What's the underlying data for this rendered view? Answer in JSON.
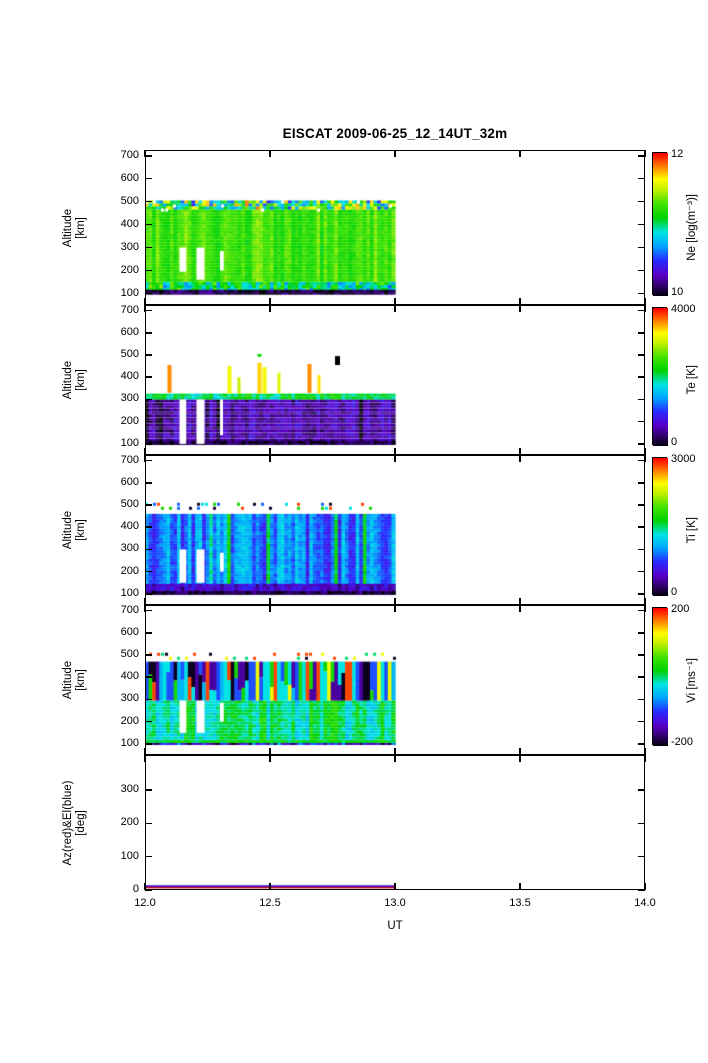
{
  "chart_data": {
    "type": "heatmap",
    "title": "EISCAT 2009-06-25_12_14UT_32m",
    "xlabel": "UT",
    "xlim": [
      12.0,
      14.0
    ],
    "xticks": [
      "12.0",
      "12.5",
      "13.0",
      "13.5",
      "14.0"
    ],
    "data_time_range": [
      12.0,
      13.0
    ],
    "legend": "none",
    "grid": false,
    "colormap": {
      "stops": [
        [
          0.0,
          "#000000"
        ],
        [
          0.05,
          "#20004a"
        ],
        [
          0.15,
          "#5a00c8"
        ],
        [
          0.25,
          "#2a2aff"
        ],
        [
          0.35,
          "#00a4ff"
        ],
        [
          0.45,
          "#00e4e4"
        ],
        [
          0.55,
          "#00d200"
        ],
        [
          0.65,
          "#44e400"
        ],
        [
          0.75,
          "#c8f000"
        ],
        [
          0.82,
          "#ffff00"
        ],
        [
          0.9,
          "#ff8c00"
        ],
        [
          1.0,
          "#ff0000"
        ]
      ]
    },
    "panels": [
      {
        "id": "ne",
        "quantity": "Ne",
        "ylabel_line1": "Altitude",
        "ylabel_line2": "[km]",
        "ylim": [
          50,
          725
        ],
        "yticks": [
          100,
          200,
          300,
          400,
          500,
          600,
          700
        ],
        "colorbar": {
          "label": "Ne [log(m⁻³)]",
          "tick_top": "12",
          "tick_bottom": "10",
          "clim": [
            10,
            12
          ]
        },
        "render": {
          "seed": 11,
          "columns": 70,
          "regions": [
            {
              "alt": [
                98,
                465
              ],
              "mean": 0.63,
              "jitter": 0.07,
              "rowNoise": 0.03
            },
            {
              "alt": [
                116,
                150
              ],
              "mean": 0.5,
              "jitter": 0.12,
              "rowNoise": 0.12
            },
            {
              "alt": [
                465,
                505
              ],
              "mean": 0.58,
              "jitter": 0.1,
              "rowNoise": 0.3
            },
            {
              "alt": [
                95,
                116
              ],
              "mean": 0.06,
              "jitter": 0.03,
              "rowNoise": 0.06
            }
          ],
          "speckles": [
            {
              "alt": [
                465,
                505
              ],
              "density": 0.12,
              "palette": [
                -1
              ],
              "cell": 4
            }
          ],
          "gaps": [
            {
              "t": [
                12.138,
                12.165
              ],
              "alt": [
                195,
                300
              ]
            },
            {
              "t": [
                12.206,
                12.238
              ],
              "alt": [
                160,
                300
              ]
            },
            {
              "t": [
                12.3,
                12.315
              ],
              "alt": [
                200,
                285
              ]
            }
          ]
        }
      },
      {
        "id": "te",
        "quantity": "Te",
        "ylabel_line1": "Altitude",
        "ylabel_line2": "[km]",
        "ylim": [
          50,
          725
        ],
        "yticks": [
          100,
          200,
          300,
          400,
          500,
          600,
          700
        ],
        "colorbar": {
          "label": "Te [K]",
          "tick_top": "4000",
          "tick_bottom": "0",
          "clim": [
            0,
            4000
          ]
        },
        "render": {
          "seed": 23,
          "columns": 70,
          "regions": [
            {
              "alt": [
                98,
                300
              ],
              "mean": 0.13,
              "jitter": 0.04,
              "rowNoise": 0.05,
              "hlines": 0.28,
              "darkProb": 0.1,
              "darkShift": 0.1
            },
            {
              "alt": [
                300,
                326
              ],
              "mean": 0.52,
              "jitter": 0.07,
              "rowNoise": 0.05
            },
            {
              "alt": [
                95,
                114
              ],
              "mean": 0.05,
              "jitter": 0.03,
              "rowNoise": 0.05
            }
          ],
          "streaks": [
            {
              "t": 12.09,
              "alt": [
                330,
                455
              ],
              "value": 0.9,
              "w": 4
            },
            {
              "t": 12.33,
              "alt": [
                326,
                450
              ],
              "value": 0.8,
              "w": 4
            },
            {
              "t": 12.37,
              "alt": [
                326,
                400
              ],
              "value": 0.75,
              "w": 3
            },
            {
              "t": 12.45,
              "alt": [
                326,
                465
              ],
              "value": 0.85,
              "w": 4
            },
            {
              "t": 12.45,
              "alt": [
                492,
                505
              ],
              "value": 0.56,
              "w": 4
            },
            {
              "t": 12.47,
              "alt": [
                326,
                445
              ],
              "value": 0.8,
              "w": 4
            },
            {
              "t": 12.53,
              "alt": [
                326,
                420
              ],
              "value": 0.78,
              "w": 3
            },
            {
              "t": 12.65,
              "alt": [
                330,
                460
              ],
              "value": 0.9,
              "w": 4
            },
            {
              "t": 12.69,
              "alt": [
                326,
                410
              ],
              "value": 0.84,
              "w": 3
            },
            {
              "t": 12.76,
              "alt": [
                455,
                495
              ],
              "value": 0.0,
              "w": 5
            }
          ],
          "gaps": [
            {
              "t": [
                12.138,
                12.165
              ],
              "alt": [
                100,
                300
              ]
            },
            {
              "t": [
                12.206,
                12.238
              ],
              "alt": [
                100,
                300
              ]
            },
            {
              "t": [
                12.3,
                12.312
              ],
              "alt": [
                140,
                300
              ]
            }
          ]
        }
      },
      {
        "id": "ti",
        "quantity": "Ti",
        "ylabel_line1": "Altitude",
        "ylabel_line2": "[km]",
        "ylim": [
          50,
          725
        ],
        "yticks": [
          100,
          200,
          300,
          400,
          500,
          600,
          700
        ],
        "colorbar": {
          "label": "Ti [K]",
          "tick_top": "3000",
          "tick_bottom": "0",
          "clim": [
            0,
            3000
          ]
        },
        "render": {
          "seed": 37,
          "columns": 70,
          "regions": [
            {
              "alt": [
                98,
                460
              ],
              "mean": 0.32,
              "jitter": 0.1,
              "rowNoise": 0.04,
              "hotProb": 0.12,
              "hotShift": 0.18
            },
            {
              "alt": [
                98,
                145
              ],
              "mean": 0.16,
              "jitter": 0.05,
              "rowNoise": 0.05
            },
            {
              "alt": [
                95,
                112
              ],
              "mean": 0.05,
              "jitter": 0.03,
              "rowNoise": 0.04
            }
          ],
          "speckles": [
            {
              "alt": [
                478,
                510
              ],
              "density": 0.22,
              "palette": [
                0.95,
                0.3,
                0.58,
                0.03,
                0.45
              ],
              "cell": 4
            }
          ],
          "gaps": [
            {
              "t": [
                12.138,
                12.165
              ],
              "alt": [
                150,
                300
              ]
            },
            {
              "t": [
                12.206,
                12.238
              ],
              "alt": [
                150,
                300
              ]
            },
            {
              "t": [
                12.3,
                12.315
              ],
              "alt": [
                200,
                285
              ]
            }
          ]
        }
      },
      {
        "id": "vi",
        "quantity": "Vi",
        "ylabel_line1": "Altitude",
        "ylabel_line2": "[km]",
        "ylim": [
          50,
          725
        ],
        "yticks": [
          100,
          200,
          300,
          400,
          500,
          600,
          700
        ],
        "colorbar": {
          "label": "Vi [ms⁻¹]",
          "tick_top": "200",
          "tick_bottom": "-200",
          "clim": [
            -200,
            200
          ]
        },
        "render": {
          "seed": 53,
          "columns": 70,
          "regions": [
            {
              "alt": [
                98,
                295
              ],
              "mean": 0.5,
              "jitter": 0.09,
              "rowNoise": 0.05
            },
            {
              "alt": [
                295,
                470
              ],
              "mode": "categorical",
              "palette": [
                0.45,
                0.28,
                0.12,
                0.02,
                0.95,
                0.8,
                0.58,
                0.38
              ],
              "weights": [
                3,
                2,
                1.2,
                1.2,
                1.3,
                0.9,
                1.6,
                2
              ],
              "splitProb": 0.4
            },
            {
              "alt": [
                95,
                116
              ],
              "mean": 0.56,
              "jitter": 0.04,
              "rowNoise": 0.04
            },
            {
              "alt": [
                95,
                104
              ],
              "mean": 0.2,
              "jitter": 0.1,
              "rowNoise": 0.15
            }
          ],
          "speckles": [
            {
              "alt": [
                478,
                510
              ],
              "density": 0.18,
              "palette": [
                0.02,
                0.95,
                0.8,
                0.5
              ],
              "cell": 4
            }
          ],
          "gaps": [
            {
              "t": [
                12.138,
                12.165
              ],
              "alt": [
                150,
                295
              ]
            },
            {
              "t": [
                12.206,
                12.238
              ],
              "alt": [
                150,
                295
              ]
            },
            {
              "t": [
                12.3,
                12.315
              ],
              "alt": [
                200,
                285
              ]
            }
          ]
        }
      },
      {
        "id": "azel",
        "quantity": "Az/El",
        "ylabel_line1": "Az(red)&El(blue)",
        "ylabel_line2": "[deg]",
        "ylim": [
          0,
          405
        ],
        "yticks": [
          0,
          100,
          200,
          300
        ],
        "lines": [
          {
            "name": "az",
            "color": "#cc0000",
            "value": 0
          },
          {
            "name": "el",
            "color": "#3300cc",
            "value": 0
          }
        ]
      }
    ]
  }
}
